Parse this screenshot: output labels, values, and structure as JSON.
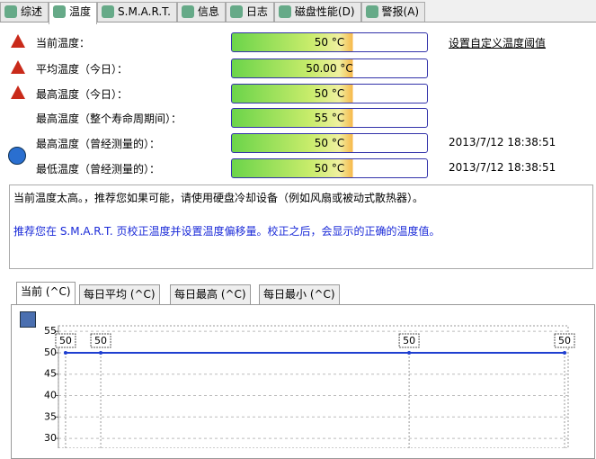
{
  "tabs": [
    "综述",
    "温度",
    "S.M.A.R.T.",
    "信息",
    "日志",
    "磁盘性能(D)",
    "警报(A)"
  ],
  "rows": [
    {
      "label": "当前温度：",
      "value": "50 °C",
      "extra": "设置自定义温度阈值"
    },
    {
      "label": "平均温度（今日）：",
      "value": "50.00 °C"
    },
    {
      "label": "最高温度（今日）：",
      "value": "50 °C"
    },
    {
      "label": "最高温度（整个寿命周期间）：",
      "value": "55 °C"
    },
    {
      "label": "最高温度（曾经测量的）：",
      "value": "50 °C",
      "extra": "2013/7/12 18:38:51"
    },
    {
      "label": "最低温度（曾经测量的）：",
      "value": "50 °C",
      "extra": "2013/7/12 18:38:51"
    }
  ],
  "message": [
    "当前温度太高。，推荐您如果可能，请使用硬盘冷却设备（例如风扇或被动式散热器）。",
    "推荐您在 S.M.A.R.T. 页校正温度并设置温度偏移量。校正之后，会显示的正确的温度值。"
  ],
  "chart_tabs": [
    "当前 (^C)",
    "每日平均 (^C)",
    "每日最高 (^C)",
    "每日最小 (^C)"
  ],
  "chart_data": {
    "type": "line",
    "x": [
      1.4,
      8.3,
      68.8,
      99.3
    ],
    "xlim": [
      0,
      100
    ],
    "series": [
      {
        "color": "#1f3fd0",
        "values": [
          50,
          50,
          50,
          50
        ]
      }
    ],
    "ylim": [
      27.7,
      56.3
    ],
    "yticks": [
      30,
      35,
      40,
      45,
      50,
      55
    ],
    "grid": true
  }
}
